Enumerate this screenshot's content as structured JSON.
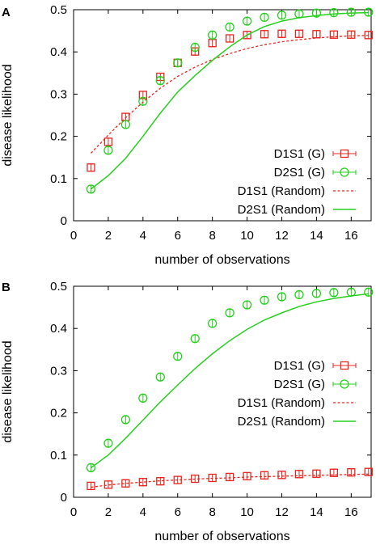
{
  "colors": {
    "d1s1": "#e8261f",
    "d2s1": "#27d01e",
    "axis": "#000000"
  },
  "chart_data": [
    {
      "type": "scatter",
      "panel_label": "A",
      "xlabel": "number of observations",
      "ylabel": "disease likelihood",
      "xlim": [
        0.5,
        17
      ],
      "ylim": [
        0,
        0.5
      ],
      "x_ticks": [
        0,
        2,
        4,
        6,
        8,
        10,
        12,
        14,
        16
      ],
      "y_ticks": [
        0,
        0.1,
        0.2,
        0.3,
        0.4,
        0.5
      ],
      "x_tick_labels": [
        "0",
        "2",
        "4",
        "6",
        "8",
        "10",
        "12",
        "14",
        "16"
      ],
      "y_tick_labels": [
        "0",
        "0.1",
        "0.2",
        "0.3",
        "0.4",
        "0.5"
      ],
      "legend_position": "bottom-right",
      "grid": false,
      "series": [
        {
          "name": "D1S1 (G)",
          "style": "errorbar-square",
          "color": "#e8261f",
          "x": [
            1,
            2,
            3,
            4,
            5,
            6,
            7,
            8,
            9,
            10,
            11,
            12,
            13,
            14,
            15,
            16,
            17
          ],
          "y": [
            0.126,
            0.187,
            0.246,
            0.298,
            0.341,
            0.374,
            0.401,
            0.421,
            0.432,
            0.44,
            0.442,
            0.443,
            0.443,
            0.442,
            0.441,
            0.441,
            0.44
          ]
        },
        {
          "name": "D2S1 (G)",
          "style": "errorbar-circle",
          "color": "#27d01e",
          "x": [
            1,
            2,
            3,
            4,
            5,
            6,
            7,
            8,
            9,
            10,
            11,
            12,
            13,
            14,
            15,
            16,
            17
          ],
          "y": [
            0.075,
            0.167,
            0.228,
            0.283,
            0.332,
            0.374,
            0.411,
            0.44,
            0.459,
            0.473,
            0.482,
            0.487,
            0.49,
            0.492,
            0.493,
            0.494,
            0.494
          ]
        },
        {
          "name": "D1S1 (Random)",
          "style": "dashed",
          "color": "#e8261f",
          "x": [
            1,
            2,
            3,
            4,
            5,
            6,
            7,
            8,
            9,
            10,
            11,
            12,
            13,
            14,
            15,
            16,
            17
          ],
          "y": [
            0.16,
            0.203,
            0.244,
            0.281,
            0.314,
            0.342,
            0.364,
            0.382,
            0.396,
            0.408,
            0.417,
            0.424,
            0.429,
            0.433,
            0.436,
            0.438,
            0.439
          ]
        },
        {
          "name": "D2S1 (Random)",
          "style": "solid",
          "color": "#27d01e",
          "x": [
            1,
            2,
            3,
            4,
            5,
            6,
            7,
            8,
            9,
            10,
            11,
            12,
            13,
            14,
            15,
            16,
            17
          ],
          "y": [
            0.075,
            0.107,
            0.148,
            0.2,
            0.255,
            0.305,
            0.344,
            0.38,
            0.412,
            0.44,
            0.46,
            0.473,
            0.481,
            0.486,
            0.49,
            0.492,
            0.493
          ]
        }
      ]
    },
    {
      "type": "scatter",
      "panel_label": "B",
      "xlabel": "number of observations",
      "ylabel": "disease likelihood",
      "xlim": [
        0.5,
        17
      ],
      "ylim": [
        0,
        0.5
      ],
      "x_ticks": [
        0,
        2,
        4,
        6,
        8,
        10,
        12,
        14,
        16
      ],
      "y_ticks": [
        0,
        0.1,
        0.2,
        0.3,
        0.4,
        0.5
      ],
      "x_tick_labels": [
        "0",
        "2",
        "4",
        "6",
        "8",
        "10",
        "12",
        "14",
        "16"
      ],
      "y_tick_labels": [
        "0",
        "0.1",
        "0.2",
        "0.3",
        "0.4",
        "0.5"
      ],
      "legend_position": "middle-right",
      "grid": false,
      "series": [
        {
          "name": "D1S1 (G)",
          "style": "errorbar-square",
          "color": "#e8261f",
          "x": [
            1,
            2,
            3,
            4,
            5,
            6,
            7,
            8,
            9,
            10,
            11,
            12,
            13,
            14,
            15,
            16,
            17
          ],
          "y": [
            0.027,
            0.03,
            0.033,
            0.036,
            0.038,
            0.041,
            0.044,
            0.046,
            0.048,
            0.05,
            0.052,
            0.053,
            0.055,
            0.056,
            0.058,
            0.059,
            0.06
          ]
        },
        {
          "name": "D2S1 (G)",
          "style": "errorbar-circle",
          "color": "#27d01e",
          "x": [
            1,
            2,
            3,
            4,
            5,
            6,
            7,
            8,
            9,
            10,
            11,
            12,
            13,
            14,
            15,
            16,
            17
          ],
          "y": [
            0.07,
            0.128,
            0.184,
            0.235,
            0.285,
            0.334,
            0.376,
            0.412,
            0.437,
            0.456,
            0.467,
            0.475,
            0.48,
            0.483,
            0.485,
            0.486,
            0.486
          ]
        },
        {
          "name": "D1S1 (Random)",
          "style": "dashed",
          "color": "#e8261f",
          "x": [
            1,
            2,
            3,
            4,
            5,
            6,
            7,
            8,
            9,
            10,
            11,
            12,
            13,
            14,
            15,
            16,
            17
          ],
          "y": [
            0.024,
            0.029,
            0.033,
            0.036,
            0.039,
            0.041,
            0.043,
            0.045,
            0.046,
            0.048,
            0.049,
            0.05,
            0.051,
            0.052,
            0.053,
            0.054,
            0.055
          ]
        },
        {
          "name": "D2S1 (Random)",
          "style": "solid",
          "color": "#27d01e",
          "x": [
            1,
            2,
            3,
            4,
            5,
            6,
            7,
            8,
            9,
            10,
            11,
            12,
            13,
            14,
            15,
            16,
            17
          ],
          "y": [
            0.07,
            0.1,
            0.14,
            0.183,
            0.226,
            0.266,
            0.305,
            0.34,
            0.371,
            0.398,
            0.42,
            0.437,
            0.452,
            0.463,
            0.471,
            0.477,
            0.482
          ]
        }
      ]
    }
  ]
}
